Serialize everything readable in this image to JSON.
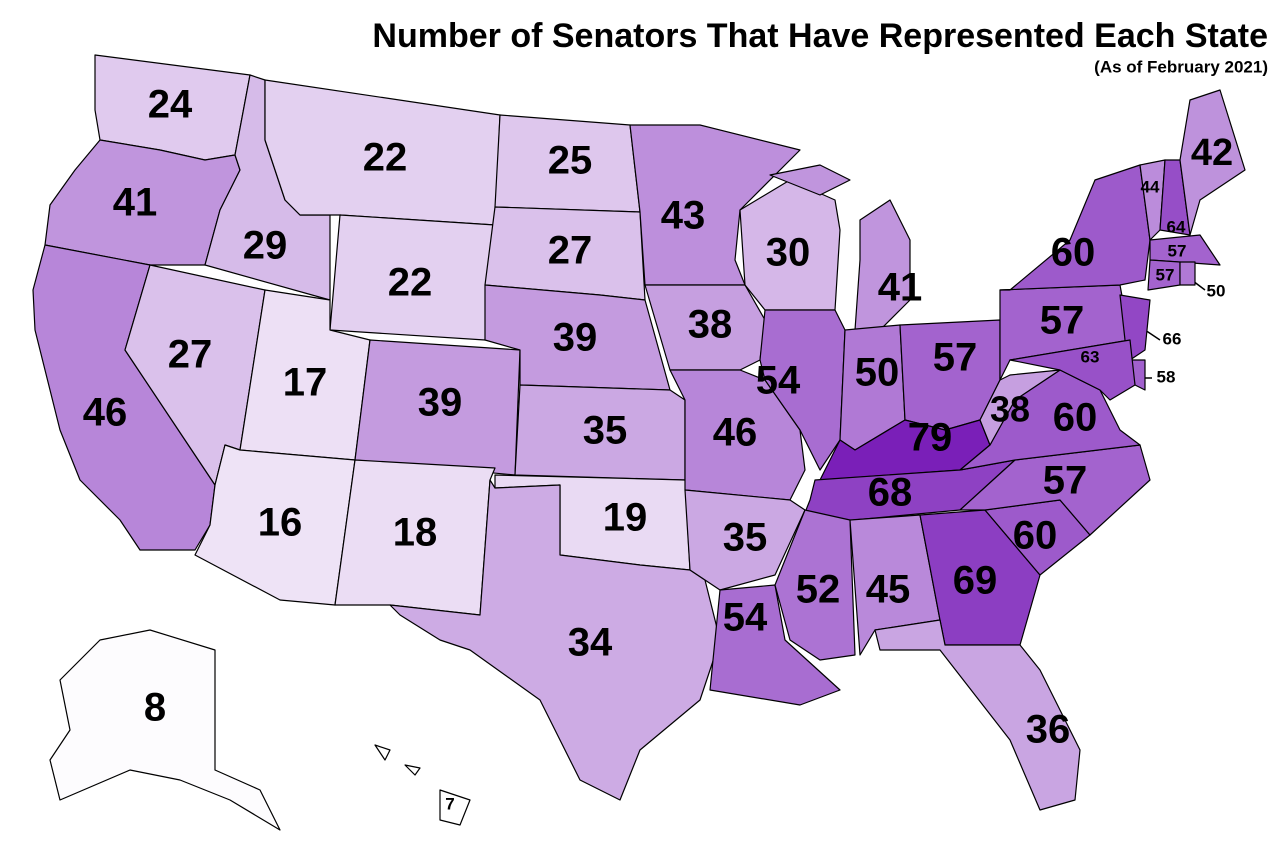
{
  "chart_data": {
    "type": "choropleth",
    "title": "Number of Senators That Have Represented Each State",
    "subtitle": "(As of February 2021)",
    "values": [
      24,
      41,
      46,
      29,
      27,
      22,
      22,
      17,
      16,
      39,
      18,
      25,
      27,
      39,
      35,
      19,
      34,
      43,
      38,
      46,
      35,
      54,
      30,
      54,
      41,
      50,
      57,
      79,
      68,
      52,
      45,
      69,
      36,
      60,
      57,
      60,
      38,
      57,
      60,
      66,
      58,
      63,
      44,
      64,
      42,
      57,
      57,
      50,
      8,
      7
    ],
    "color_range": [
      "#ffffff",
      "#7a1fb8"
    ]
  }
}
